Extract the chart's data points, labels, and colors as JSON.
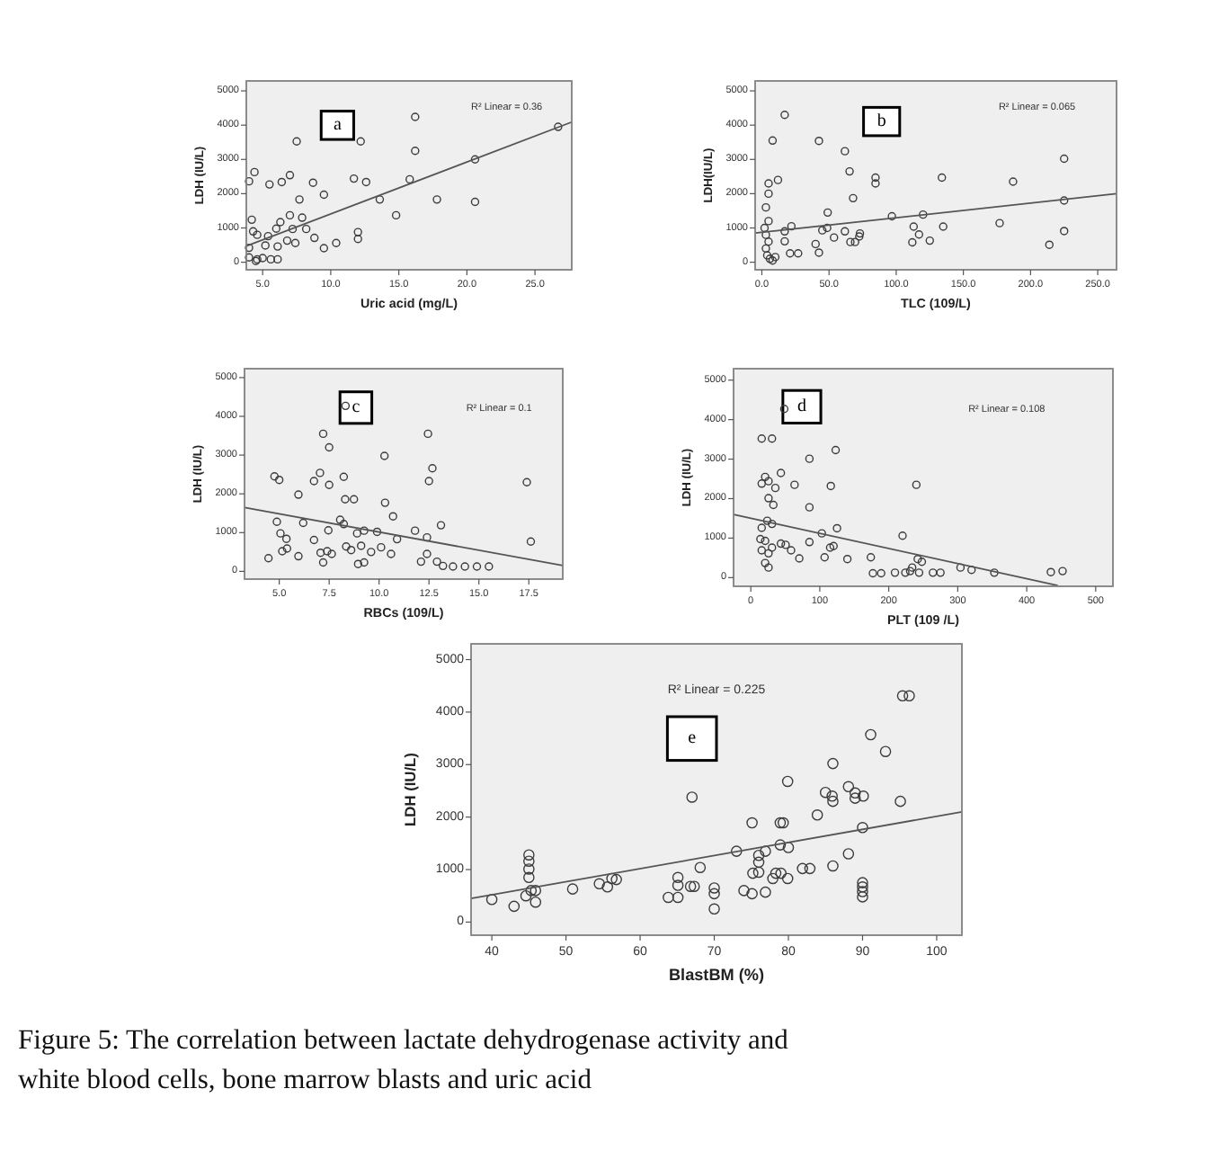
{
  "chart_data": [
    {
      "type": "scatter",
      "title": "a",
      "xlabel": "Uric acid (mg/L)",
      "ylabel": "LDH (IU/L)",
      "annotations": [
        "R² Linear = 0.36"
      ],
      "xlim": [
        3.8,
        27.7
      ],
      "xticks": [
        {
          "value": 5,
          "label": "5.0"
        },
        {
          "value": 10,
          "label": "10.0"
        },
        {
          "value": 15,
          "label": "15.0"
        },
        {
          "value": 20,
          "label": "20.0"
        },
        {
          "value": 25,
          "label": "25.0"
        }
      ],
      "ylim": [
        -220,
        5290
      ],
      "yticks": [
        0,
        1000,
        2000,
        3000,
        4000,
        5000
      ],
      "marker": "circle",
      "series": [
        {
          "color": "#3c3c3c",
          "x": [
            7.5,
            16.2,
            16.2,
            12.2,
            4.4,
            4.0,
            5.5,
            6.4,
            7.0,
            8.7,
            9.5,
            7.7,
            11.7,
            12.6,
            15.8,
            13.6,
            17.8,
            20.6,
            20.6,
            14.8,
            26.7,
            4.2,
            7.0,
            7.9,
            6.3,
            6.0,
            7.2,
            8.2,
            4.3,
            4.6,
            5.4,
            12.0,
            12.0,
            8.8,
            6.8,
            7.4,
            5.2,
            6.1,
            10.4,
            9.5,
            4.0,
            4.6,
            5.0,
            5.6,
            6.1,
            4.5,
            4.0
          ],
          "values": [
            3525,
            4240,
            3250,
            3525,
            2630,
            2360,
            2270,
            2340,
            2540,
            2320,
            1970,
            1830,
            2440,
            2340,
            2420,
            1830,
            1830,
            3000,
            1760,
            1370,
            3950,
            1240,
            1370,
            1300,
            1170,
            980,
            970,
            970,
            900,
            800,
            760,
            880,
            680,
            710,
            630,
            560,
            490,
            460,
            560,
            410,
            140,
            85,
            120,
            85,
            85,
            35,
            420
          ]
        },
        {
          "type": "line",
          "marker": "none",
          "color": "#555555",
          "x": [
            3.8,
            27.7
          ],
          "values": [
            470,
            4090
          ]
        }
      ]
    },
    {
      "type": "scatter",
      "title": "b",
      "xlabel": "TLC (109/L)",
      "ylabel": "LDH(IU/L)",
      "annotations": [
        "R² Linear = 0.065"
      ],
      "xlim": [
        -5,
        264
      ],
      "xticks": [
        {
          "value": 0,
          "label": "0.0"
        },
        {
          "value": 50,
          "label": "50.0"
        },
        {
          "value": 100,
          "label": "100.0"
        },
        {
          "value": 150,
          "label": "150.0"
        },
        {
          "value": 200,
          "label": "200.0"
        },
        {
          "value": 250,
          "label": "250.0"
        }
      ],
      "ylim": [
        -220,
        5290
      ],
      "yticks": [
        0,
        1000,
        2000,
        3000,
        4000,
        5000
      ],
      "marker": "circle",
      "series": [
        {
          "color": "#3c3c3c",
          "x": [
            17,
            42.5,
            61.8,
            65.3,
            84.6,
            84.6,
            134,
            187,
            225,
            67.9,
            49,
            96.8,
            120,
            225,
            177,
            135,
            113,
            22,
            48.6,
            45,
            61.8,
            73,
            72.5,
            53.7,
            117,
            125,
            112,
            65.9,
            69.4,
            225,
            214,
            40,
            42.5,
            27,
            21,
            17,
            17,
            5,
            5,
            3,
            5,
            3,
            5,
            3,
            4,
            6,
            8,
            10,
            12,
            2,
            8
          ],
          "values": [
            4300,
            3540,
            3240,
            2650,
            2470,
            2300,
            2470,
            2350,
            3020,
            1870,
            1450,
            1340,
            1390,
            1800,
            1140,
            1040,
            1040,
            1050,
            1000,
            930,
            900,
            840,
            750,
            720,
            810,
            630,
            580,
            590,
            590,
            910,
            510,
            530,
            280,
            260,
            260,
            900,
            610,
            2300,
            2000,
            1600,
            1200,
            800,
            600,
            400,
            200,
            100,
            50,
            150,
            2400,
            1000,
            3550
          ]
        },
        {
          "type": "line",
          "marker": "none",
          "color": "#555555",
          "x": [
            -5,
            264
          ],
          "values": [
            850,
            2000
          ]
        }
      ]
    },
    {
      "type": "scatter",
      "title": "c",
      "xlabel": "RBCs (109/L)",
      "ylabel": "LDH (IU/L)",
      "annotations": [
        "R² Linear = 0.1"
      ],
      "xlim": [
        3.26,
        19.2
      ],
      "xticks": [
        {
          "value": 5,
          "label": "5.0"
        },
        {
          "value": 7.5,
          "label": "7.5"
        },
        {
          "value": 10,
          "label": "10.0"
        },
        {
          "value": 12.5,
          "label": "12.5"
        },
        {
          "value": 15,
          "label": "15.0"
        },
        {
          "value": 17.5,
          "label": "17.5"
        }
      ],
      "ylim": [
        -200,
        5230
      ],
      "yticks": [
        0,
        1000,
        2000,
        3000,
        4000,
        5000
      ],
      "marker": "circle",
      "series": [
        {
          "color": "#3c3c3c",
          "x": [
            8.32,
            7.2,
            7.5,
            12.45,
            10.27,
            7.04,
            4.76,
            5.0,
            6.74,
            7.5,
            8.23,
            12.67,
            12.5,
            17.4,
            5.96,
            8.3,
            8.74,
            10.3,
            10.7,
            4.88,
            6.2,
            8.05,
            8.23,
            5.06,
            5.36,
            6.74,
            7.46,
            8.9,
            9.25,
            9.9,
            10.9,
            11.8,
            12.4,
            13.1,
            17.6,
            5.15,
            5.39,
            5.96,
            4.46,
            7.07,
            7.4,
            7.63,
            7.2,
            8.35,
            8.6,
            9.1,
            9.25,
            8.95,
            9.6,
            10.1,
            10.6,
            12.1,
            12.4,
            12.9,
            13.2,
            13.7,
            14.3,
            14.9,
            15.5
          ],
          "values": [
            4270,
            3550,
            3200,
            3550,
            2980,
            2540,
            2450,
            2360,
            2330,
            2230,
            2440,
            2660,
            2330,
            2300,
            1980,
            1860,
            1860,
            1770,
            1420,
            1280,
            1250,
            1330,
            1220,
            980,
            840,
            810,
            1060,
            980,
            1050,
            1020,
            830,
            1050,
            875,
            1190,
            770,
            520,
            590,
            390,
            340,
            480,
            520,
            450,
            230,
            640,
            550,
            660,
            230,
            190,
            500,
            620,
            450,
            250,
            450,
            250,
            140,
            125,
            125,
            125,
            125
          ]
        },
        {
          "type": "line",
          "marker": "none",
          "color": "#555555",
          "x": [
            3.26,
            19.2
          ],
          "values": [
            1650,
            150
          ]
        }
      ]
    },
    {
      "type": "scatter",
      "title": "d",
      "xlabel": "PLT (109 /L)",
      "ylabel": "LDH (IU/L)",
      "annotations": [
        "R² Linear = 0.108"
      ],
      "xlim": [
        -25,
        525
      ],
      "xticks": [
        0,
        100,
        200,
        300,
        400,
        500
      ],
      "ylim": [
        -220,
        5290
      ],
      "yticks": [
        0,
        1000,
        2000,
        3000,
        4000,
        5000
      ],
      "marker": "circle",
      "series": [
        {
          "color": "#3c3c3c",
          "x": [
            48.5,
            15.8,
            30.7,
            123,
            85,
            43.6,
            20.8,
            25.7,
            35.6,
            15.8,
            63.4,
            116,
            240,
            25.7,
            32.7,
            85,
            23.8,
            30.7,
            15.8,
            125,
            103,
            220,
            13.9,
            20.8,
            43.6,
            50.5,
            30.7,
            85,
            120,
            115,
            15.8,
            25.7,
            58.4,
            70.3,
            107,
            140,
            174,
            25.7,
            20.8,
            242,
            248,
            234,
            177,
            189,
            209,
            224,
            231,
            244,
            264,
            275,
            304,
            320,
            353,
            435,
            452
          ],
          "values": [
            4270,
            3520,
            3520,
            3230,
            3010,
            2650,
            2550,
            2440,
            2270,
            2380,
            2350,
            2320,
            2350,
            2010,
            1840,
            1780,
            1440,
            1360,
            1260,
            1250,
            1120,
            1060,
            975,
            930,
            860,
            830,
            760,
            900,
            800,
            760,
            690,
            615,
            690,
            485,
            515,
            470,
            515,
            255,
            370,
            470,
            400,
            255,
            110,
            110,
            125,
            125,
            165,
            125,
            125,
            125,
            255,
            195,
            125,
            140,
            165
          ]
        },
        {
          "type": "line",
          "marker": "none",
          "color": "#555555",
          "x": [
            -25,
            445
          ],
          "values": [
            1600,
            -200
          ]
        }
      ]
    },
    {
      "type": "scatter",
      "title": "e",
      "xlabel": "BlastBM (%)",
      "ylabel": "LDH (IU/L)",
      "annotations": [
        "R² Linear = 0.225",
        "Figure 5: The correlation between lactate dehydrogenase activity and white blood cells, bone marrow blasts and uric acid"
      ],
      "xlim": [
        37.2,
        103.4
      ],
      "xticks": [
        40,
        50,
        60,
        70,
        80,
        90,
        100
      ],
      "ylim": [
        -250,
        5300
      ],
      "yticks": [
        0,
        1000,
        2000,
        3000,
        4000,
        5000
      ],
      "marker": "circle",
      "series": [
        {
          "color": "#3c3c3c",
          "x": [
            95.4,
            96.3,
            91.1,
            93.1,
            86,
            79.9,
            67,
            85,
            85.9,
            86,
            88.1,
            89,
            89,
            90.1,
            95.1,
            83.9,
            75.1,
            78.9,
            79.3,
            90,
            78.9,
            80,
            73,
            76,
            76.9,
            76,
            76,
            75.2,
            88.1,
            86,
            68.1,
            81.9,
            82.9,
            78.3,
            77.9,
            79,
            79.9,
            65.1,
            65.1,
            66.8,
            67.3,
            70,
            70,
            70,
            74,
            75.1,
            76.9,
            63.8,
            65.1,
            90,
            90,
            90,
            90,
            56.2,
            56.8,
            55.6,
            54.5,
            50.9,
            45,
            45,
            45,
            45,
            45.3,
            45.9,
            45.9,
            44.6,
            43,
            40
          ],
          "values": [
            4310,
            4310,
            3570,
            3250,
            3020,
            2680,
            2380,
            2470,
            2400,
            2300,
            2580,
            2460,
            2360,
            2400,
            2300,
            2040,
            1890,
            1890,
            1890,
            1800,
            1470,
            1420,
            1350,
            1270,
            1350,
            1140,
            950,
            930,
            1300,
            1070,
            1040,
            1020,
            1020,
            930,
            830,
            930,
            830,
            850,
            700,
            680,
            680,
            650,
            540,
            250,
            600,
            540,
            570,
            470,
            470,
            750,
            670,
            580,
            480,
            830,
            810,
            670,
            730,
            630,
            1280,
            1160,
            1010,
            850,
            600,
            600,
            380,
            500,
            300,
            430
          ]
        },
        {
          "type": "line",
          "marker": "none",
          "color": "#555555",
          "x": [
            37.2,
            103.4
          ],
          "values": [
            450,
            2100
          ]
        }
      ]
    }
  ]
}
